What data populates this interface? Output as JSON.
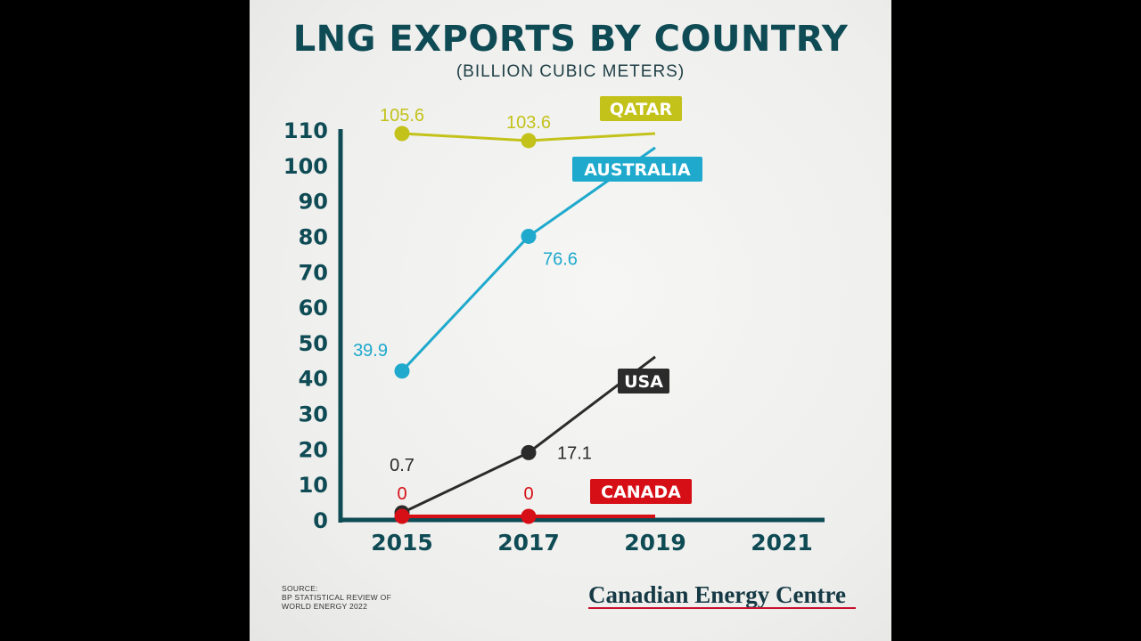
{
  "chart_data": {
    "type": "line",
    "title": "LNG EXPORTS BY COUNTRY",
    "subtitle": "(BILLION CUBIC METERS)",
    "ylim": [
      0,
      110
    ],
    "yticks": [
      0,
      10,
      20,
      30,
      40,
      50,
      60,
      70,
      80,
      90,
      100,
      110
    ],
    "xticks": [
      "2015",
      "2017",
      "2019",
      "2021"
    ],
    "grid": false,
    "series": [
      {
        "name": "QATAR",
        "color": "#c3c21a",
        "points": [
          {
            "x": "2015",
            "y": 109
          },
          {
            "x": "2017",
            "y": 107
          },
          {
            "x": "2019",
            "y": 109
          }
        ],
        "labels": [
          "105.6",
          "103.6",
          ""
        ]
      },
      {
        "name": "AUSTRALIA",
        "color": "#1ea9cd",
        "points": [
          {
            "x": "2015",
            "y": 42
          },
          {
            "x": "2017",
            "y": 80
          },
          {
            "x": "2019",
            "y": 105
          }
        ],
        "labels": [
          "39.9",
          "76.6",
          ""
        ]
      },
      {
        "name": "USA",
        "color": "#2b2b2b",
        "points": [
          {
            "x": "2015",
            "y": 2
          },
          {
            "x": "2017",
            "y": 19
          },
          {
            "x": "2019",
            "y": 46
          }
        ],
        "labels": [
          "0.7",
          "17.1",
          ""
        ]
      },
      {
        "name": "CANADA",
        "color": "#d60e16",
        "points": [
          {
            "x": "2015",
            "y": 1
          },
          {
            "x": "2017",
            "y": 1
          },
          {
            "x": "2019",
            "y": 1
          }
        ],
        "labels": [
          "0",
          "0",
          ""
        ]
      }
    ]
  },
  "source": {
    "line1": "SOURCE:",
    "line2": "BP STATISTICAL REVIEW OF",
    "line3": "WORLD ENERGY 2022"
  },
  "brand": "Canadian Energy Centre",
  "colors": {
    "axis": "#0f4b55",
    "background": "#000000",
    "brand_underline": "#c8102e"
  }
}
